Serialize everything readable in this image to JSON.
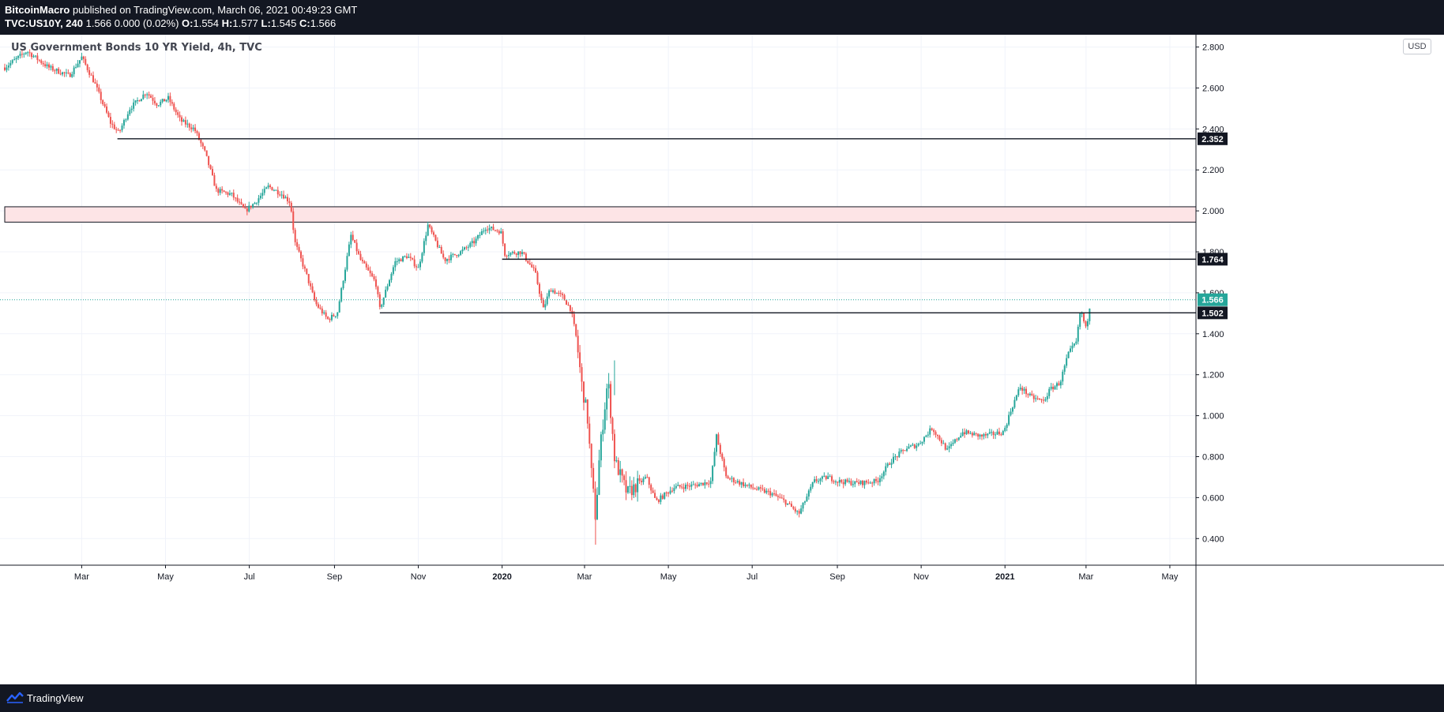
{
  "header": {
    "author": "BitcoinMacro",
    "published_text": " published on TradingView.com, March 06, 2021 00:49:23 GMT",
    "symbol": "TVC:US10Y, 240",
    "quote": " 1.566 0.000 (0.02%) ",
    "o_label": "O:",
    "o_value": "1.554",
    "h_label": " H:",
    "h_value": "1.577",
    "l_label": " L:",
    "l_value": "1.545",
    "c_label": " C:",
    "c_value": "1.566"
  },
  "chart_title": "US Government Bonds 10 YR Yield, 4h, TVC",
  "currency": "USD",
  "footer": {
    "brand": "TradingView"
  },
  "colors": {
    "up": "#26a69a",
    "down": "#ef5350",
    "current_price": "#26a69a",
    "level_line": "#131722",
    "zone_fill": "#fde4e6",
    "grid": "#f0f3fa",
    "text": "#131722"
  },
  "chart_data": {
    "type": "candlestick",
    "title": "US Government Bonds 10 YR Yield, 4h, TVC",
    "ylim": [
      0.27,
      2.86
    ],
    "y_ticks": [
      0.4,
      0.6,
      0.8,
      1.0,
      1.2,
      1.4,
      1.6,
      1.8,
      2.0,
      2.2,
      2.4,
      2.6,
      2.8
    ],
    "x_range": [
      "2019-01-04",
      "2021-05-20"
    ],
    "x_ticks": [
      {
        "date": "2019-03-01",
        "label": "Mar"
      },
      {
        "date": "2019-05-01",
        "label": "May"
      },
      {
        "date": "2019-07-01",
        "label": "Jul"
      },
      {
        "date": "2019-09-01",
        "label": "Sep"
      },
      {
        "date": "2019-11-01",
        "label": "Nov"
      },
      {
        "date": "2020-01-01",
        "label": "2020"
      },
      {
        "date": "2020-03-01",
        "label": "Mar"
      },
      {
        "date": "2020-05-01",
        "label": "May"
      },
      {
        "date": "2020-07-01",
        "label": "Jul"
      },
      {
        "date": "2020-09-01",
        "label": "Sep"
      },
      {
        "date": "2020-11-01",
        "label": "Nov"
      },
      {
        "date": "2021-01-01",
        "label": "2021"
      },
      {
        "date": "2021-03-01",
        "label": "Mar"
      },
      {
        "date": "2021-05-01",
        "label": "May"
      }
    ],
    "price_path": [
      [
        "2019-01-04",
        2.7
      ],
      [
        "2019-01-20",
        2.78
      ],
      [
        "2019-02-05",
        2.7
      ],
      [
        "2019-02-20",
        2.66
      ],
      [
        "2019-03-01",
        2.75
      ],
      [
        "2019-03-10",
        2.63
      ],
      [
        "2019-03-22",
        2.43
      ],
      [
        "2019-03-28",
        2.38
      ],
      [
        "2019-04-05",
        2.5
      ],
      [
        "2019-04-17",
        2.58
      ],
      [
        "2019-04-25",
        2.52
      ],
      [
        "2019-05-03",
        2.55
      ],
      [
        "2019-05-12",
        2.44
      ],
      [
        "2019-05-22",
        2.4
      ],
      [
        "2019-05-30",
        2.28
      ],
      [
        "2019-06-07",
        2.1
      ],
      [
        "2019-06-18",
        2.08
      ],
      [
        "2019-06-28",
        2.0
      ],
      [
        "2019-07-05",
        2.04
      ],
      [
        "2019-07-15",
        2.12
      ],
      [
        "2019-07-25",
        2.08
      ],
      [
        "2019-07-31",
        2.04
      ],
      [
        "2019-08-03",
        1.85
      ],
      [
        "2019-08-12",
        1.68
      ],
      [
        "2019-08-18",
        1.55
      ],
      [
        "2019-08-27",
        1.47
      ],
      [
        "2019-09-03",
        1.5
      ],
      [
        "2019-09-13",
        1.88
      ],
      [
        "2019-09-20",
        1.76
      ],
      [
        "2019-10-01",
        1.65
      ],
      [
        "2019-10-04",
        1.52
      ],
      [
        "2019-10-15",
        1.75
      ],
      [
        "2019-10-24",
        1.78
      ],
      [
        "2019-11-01",
        1.72
      ],
      [
        "2019-11-08",
        1.93
      ],
      [
        "2019-11-20",
        1.76
      ],
      [
        "2019-12-02",
        1.8
      ],
      [
        "2019-12-12",
        1.85
      ],
      [
        "2019-12-20",
        1.92
      ],
      [
        "2019-12-31",
        1.9
      ],
      [
        "2020-01-03",
        1.79
      ],
      [
        "2020-01-15",
        1.8
      ],
      [
        "2020-01-25",
        1.7
      ],
      [
        "2020-01-31",
        1.52
      ],
      [
        "2020-02-05",
        1.62
      ],
      [
        "2020-02-14",
        1.58
      ],
      [
        "2020-02-20",
        1.52
      ],
      [
        "2020-02-24",
        1.38
      ],
      [
        "2020-02-28",
        1.15
      ],
      [
        "2020-03-03",
        1.0
      ],
      [
        "2020-03-06",
        0.72
      ],
      [
        "2020-03-09",
        0.5
      ],
      [
        "2020-03-12",
        0.82
      ],
      [
        "2020-03-18",
        1.18
      ],
      [
        "2020-03-23",
        0.78
      ],
      [
        "2020-04-01",
        0.62
      ],
      [
        "2020-04-15",
        0.7
      ],
      [
        "2020-04-22",
        0.58
      ],
      [
        "2020-05-05",
        0.65
      ],
      [
        "2020-05-20",
        0.66
      ],
      [
        "2020-06-01",
        0.68
      ],
      [
        "2020-06-05",
        0.9
      ],
      [
        "2020-06-12",
        0.7
      ],
      [
        "2020-06-30",
        0.65
      ],
      [
        "2020-07-15",
        0.62
      ],
      [
        "2020-07-25",
        0.58
      ],
      [
        "2020-08-04",
        0.52
      ],
      [
        "2020-08-15",
        0.68
      ],
      [
        "2020-08-25",
        0.7
      ],
      [
        "2020-09-01",
        0.68
      ],
      [
        "2020-09-15",
        0.67
      ],
      [
        "2020-09-30",
        0.68
      ],
      [
        "2020-10-10",
        0.78
      ],
      [
        "2020-10-21",
        0.84
      ],
      [
        "2020-10-30",
        0.86
      ],
      [
        "2020-11-09",
        0.94
      ],
      [
        "2020-11-20",
        0.83
      ],
      [
        "2020-12-01",
        0.92
      ],
      [
        "2020-12-15",
        0.9
      ],
      [
        "2020-12-31",
        0.92
      ],
      [
        "2021-01-06",
        1.04
      ],
      [
        "2021-01-12",
        1.14
      ],
      [
        "2021-01-20",
        1.09
      ],
      [
        "2021-01-29",
        1.07
      ],
      [
        "2021-02-03",
        1.13
      ],
      [
        "2021-02-10",
        1.16
      ],
      [
        "2021-02-16",
        1.3
      ],
      [
        "2021-02-22",
        1.36
      ],
      [
        "2021-02-25",
        1.52
      ],
      [
        "2021-03-01",
        1.42
      ],
      [
        "2021-03-04",
        1.55
      ],
      [
        "2021-03-05",
        1.566
      ]
    ],
    "horizontal_levels": [
      {
        "value": 2.352,
        "from": "2019-03-27",
        "label": "2.352"
      },
      {
        "value": 1.764,
        "from": "2020-01-01",
        "label": "1.764"
      },
      {
        "value": 1.502,
        "from": "2019-10-04",
        "label": "1.502"
      }
    ],
    "zone": {
      "from_value": 1.945,
      "to_value": 2.02,
      "from": "2019-01-04"
    },
    "current_price": {
      "value": 1.566,
      "label": "1.566"
    },
    "grid": true
  }
}
